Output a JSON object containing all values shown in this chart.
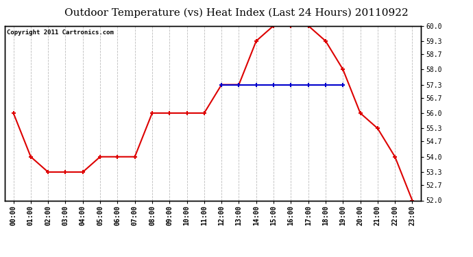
{
  "title": "Outdoor Temperature (vs) Heat Index (Last 24 Hours) 20110922",
  "copyright_text": "Copyright 2011 Cartronics.com",
  "x_labels": [
    "00:00",
    "01:00",
    "02:00",
    "03:00",
    "04:00",
    "05:00",
    "06:00",
    "07:00",
    "08:00",
    "09:00",
    "10:00",
    "11:00",
    "12:00",
    "13:00",
    "14:00",
    "15:00",
    "16:00",
    "17:00",
    "18:00",
    "19:00",
    "20:00",
    "21:00",
    "22:00",
    "23:00"
  ],
  "temp_values": [
    56.0,
    54.0,
    53.3,
    53.3,
    53.3,
    54.0,
    54.0,
    54.0,
    56.0,
    56.0,
    56.0,
    56.0,
    57.3,
    57.3,
    59.3,
    60.0,
    60.0,
    60.0,
    59.3,
    58.0,
    56.0,
    55.3,
    54.0,
    52.0
  ],
  "heat_values": [
    null,
    null,
    null,
    null,
    null,
    null,
    null,
    null,
    null,
    null,
    null,
    null,
    57.3,
    57.3,
    57.3,
    57.3,
    57.3,
    57.3,
    57.3,
    57.3,
    null,
    null,
    null,
    null
  ],
  "temp_color": "#dd0000",
  "heat_color": "#0000cc",
  "marker": "+",
  "marker_size": 5,
  "marker_linewidth": 1.5,
  "line_width": 1.5,
  "ylim_min": 52.0,
  "ylim_max": 60.0,
  "ytick_values": [
    52.0,
    52.7,
    53.3,
    54.0,
    54.7,
    55.3,
    56.0,
    56.7,
    57.3,
    58.0,
    58.7,
    59.3,
    60.0
  ],
  "background_color": "#ffffff",
  "plot_bg_color": "#ffffff",
  "grid_color": "#aaaaaa",
  "title_fontsize": 11,
  "label_fontsize": 7,
  "copyright_fontsize": 6.5
}
